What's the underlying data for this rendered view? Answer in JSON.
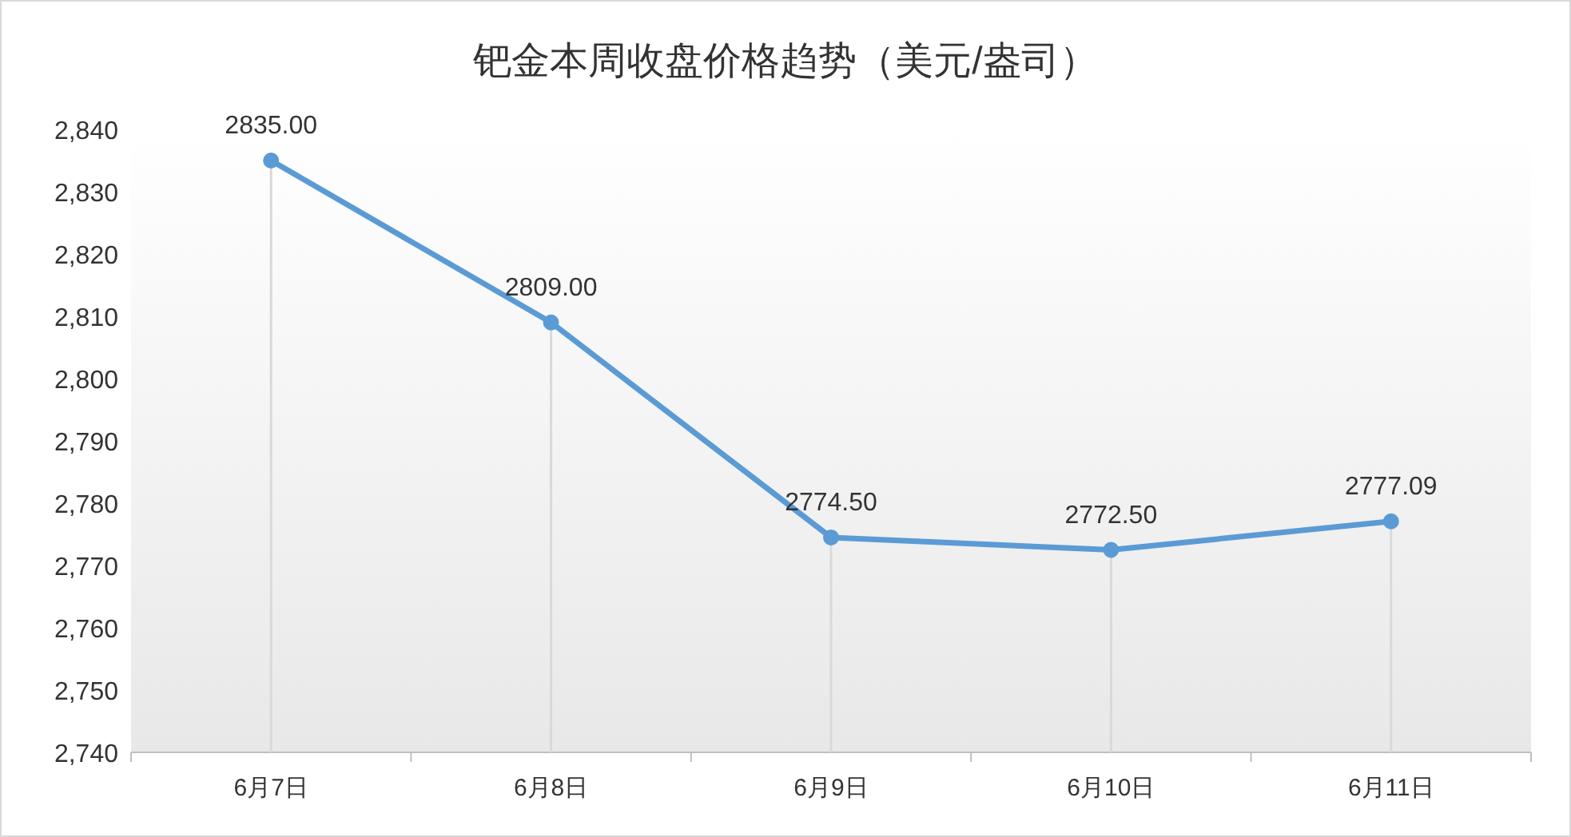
{
  "chart_data": {
    "type": "line",
    "title": "钯金本周收盘价格趋势（美元/盎司）",
    "categories": [
      "6月7日",
      "6月8日",
      "6月9日",
      "6月10日",
      "6月11日"
    ],
    "series": [
      {
        "color": "#5b9bd5",
        "values": [
          2835.0,
          2809.0,
          2774.5,
          2772.5,
          2777.09
        ]
      }
    ],
    "value_labels": [
      "2835.00",
      "2809.00",
      "2774.50",
      "2772.50",
      "2777.09"
    ],
    "ylim": [
      2740,
      2840
    ],
    "yticks": [
      {
        "value": 2740,
        "label": "2,740"
      },
      {
        "value": 2750,
        "label": "2,750"
      },
      {
        "value": 2760,
        "label": "2,760"
      },
      {
        "value": 2770,
        "label": "2,770"
      },
      {
        "value": 2780,
        "label": "2,780"
      },
      {
        "value": 2790,
        "label": "2,790"
      },
      {
        "value": 2800,
        "label": "2,800"
      },
      {
        "value": 2810,
        "label": "2,810"
      },
      {
        "value": 2820,
        "label": "2,820"
      },
      {
        "value": 2830,
        "label": "2,830"
      },
      {
        "value": 2840,
        "label": "2,840"
      }
    ],
    "grid": "x",
    "marker": "circle",
    "line_style": "solid"
  }
}
